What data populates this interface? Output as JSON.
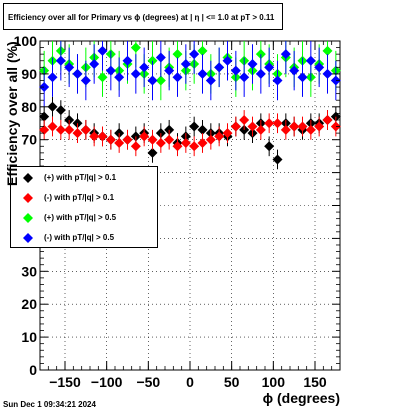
{
  "header": {
    "title": "Efficiency over all for Primary vs ϕ (degrees) at |  η  | <= 1.0 at pT > 0.11"
  },
  "footer": {
    "date": "Sun Dec  1 09:34:21 2024"
  },
  "chart_data": {
    "type": "scatter",
    "title": "Efficiency over all for Primary vs ϕ (degrees) at |  η  | <= 1.0 at pT > 0.11",
    "xlabel": "ϕ (degrees)",
    "ylabel": "Efficiency over all (%)",
    "xlim": [
      -180,
      180
    ],
    "ylim": [
      0,
      100
    ],
    "xticks": [
      -150,
      -100,
      -50,
      0,
      50,
      100,
      150
    ],
    "xtick_labels": [
      "−150",
      "−100",
      "−50",
      "0",
      "50",
      "100",
      "150"
    ],
    "yticks": [
      0,
      10,
      20,
      30,
      40,
      50,
      60,
      70,
      80,
      90,
      100
    ],
    "ytick_labels": [
      "0",
      "10",
      "20",
      "30",
      "40",
      "50",
      "60",
      "70",
      "80",
      "90",
      "100"
    ],
    "grid": true,
    "legend_position": "left",
    "series": [
      {
        "name": "(+) with pT/|q| > 0.1",
        "color": "#000000",
        "x": [
          -175,
          -165,
          -155,
          -145,
          -135,
          -125,
          -115,
          -105,
          -95,
          -85,
          -75,
          -65,
          -55,
          -45,
          -35,
          -25,
          -15,
          -5,
          5,
          15,
          25,
          35,
          45,
          55,
          65,
          75,
          85,
          95,
          105,
          115,
          125,
          135,
          145,
          155,
          165,
          175
        ],
        "y": [
          77,
          80,
          79,
          76,
          75,
          73,
          72,
          71,
          70,
          72,
          70,
          71,
          72,
          66,
          72,
          73,
          69,
          71,
          74,
          73,
          72,
          72,
          71,
          74,
          73,
          72,
          75,
          68,
          64,
          75,
          74,
          73,
          75,
          75,
          76,
          77
        ],
        "err": [
          3,
          3,
          3,
          3,
          3,
          3,
          3,
          3,
          3,
          3,
          3,
          3,
          3,
          3,
          3,
          3,
          3,
          3,
          3,
          3,
          3,
          3,
          3,
          3,
          3,
          3,
          3,
          3,
          3,
          3,
          3,
          3,
          3,
          3,
          3,
          3
        ]
      },
      {
        "name": "(-) with pT/|q| > 0.1",
        "color": "#ff0000",
        "x": [
          -175,
          -165,
          -155,
          -145,
          -135,
          -125,
          -115,
          -105,
          -95,
          -85,
          -75,
          -65,
          -55,
          -45,
          -35,
          -25,
          -15,
          -5,
          5,
          15,
          25,
          35,
          45,
          55,
          65,
          75,
          85,
          95,
          105,
          115,
          125,
          135,
          145,
          155,
          165,
          175
        ],
        "y": [
          73,
          74,
          73,
          73,
          72,
          73,
          71,
          71,
          70,
          69,
          70,
          68,
          71,
          70,
          69,
          70,
          68,
          69,
          68,
          69,
          70,
          71,
          72,
          74,
          76,
          74,
          73,
          75,
          75,
          73,
          74,
          74,
          73,
          74,
          76,
          74
        ],
        "err": [
          3,
          3,
          3,
          3,
          3,
          3,
          3,
          3,
          3,
          3,
          3,
          3,
          3,
          3,
          3,
          3,
          3,
          3,
          3,
          3,
          3,
          3,
          3,
          3,
          3,
          3,
          3,
          3,
          3,
          3,
          3,
          3,
          3,
          3,
          3,
          3
        ]
      },
      {
        "name": "(+) with pT/|q| > 0.5",
        "color": "#00ff00",
        "x": [
          -175,
          -165,
          -155,
          -145,
          -135,
          -125,
          -115,
          -105,
          -95,
          -85,
          -75,
          -65,
          -55,
          -45,
          -35,
          -25,
          -15,
          -5,
          5,
          15,
          25,
          35,
          45,
          55,
          65,
          75,
          85,
          95,
          105,
          115,
          125,
          135,
          145,
          155,
          165,
          175
        ],
        "y": [
          91,
          94,
          97,
          93,
          90,
          92,
          95,
          89,
          96,
          91,
          93,
          98,
          90,
          94,
          88,
          92,
          96,
          91,
          93,
          97,
          90,
          92,
          95,
          89,
          94,
          91,
          96,
          93,
          90,
          95,
          92,
          94,
          89,
          93,
          97,
          91
        ],
        "err": [
          6,
          6,
          6,
          6,
          6,
          6,
          6,
          6,
          6,
          6,
          6,
          6,
          6,
          6,
          6,
          6,
          6,
          6,
          6,
          6,
          6,
          6,
          6,
          6,
          6,
          6,
          6,
          6,
          6,
          6,
          6,
          6,
          6,
          6,
          6,
          6
        ]
      },
      {
        "name": "(-) with pT/|q| > 0.5",
        "color": "#0000ff",
        "x": [
          -175,
          -165,
          -155,
          -145,
          -135,
          -125,
          -115,
          -105,
          -95,
          -85,
          -75,
          -65,
          -55,
          -45,
          -35,
          -25,
          -15,
          -5,
          5,
          15,
          25,
          35,
          45,
          55,
          65,
          75,
          85,
          95,
          105,
          115,
          125,
          135,
          145,
          155,
          165,
          175
        ],
        "y": [
          86,
          89,
          94,
          92,
          90,
          88,
          93,
          97,
          91,
          89,
          94,
          90,
          92,
          88,
          95,
          91,
          89,
          93,
          96,
          90,
          88,
          92,
          94,
          91,
          89,
          93,
          90,
          92,
          88,
          96,
          91,
          89,
          94,
          92,
          90,
          88
        ],
        "err": [
          6,
          6,
          6,
          6,
          6,
          6,
          6,
          6,
          6,
          6,
          6,
          6,
          6,
          6,
          6,
          6,
          6,
          6,
          6,
          6,
          6,
          6,
          6,
          6,
          6,
          6,
          6,
          6,
          6,
          6,
          6,
          6,
          6,
          6,
          6,
          6
        ]
      }
    ]
  }
}
